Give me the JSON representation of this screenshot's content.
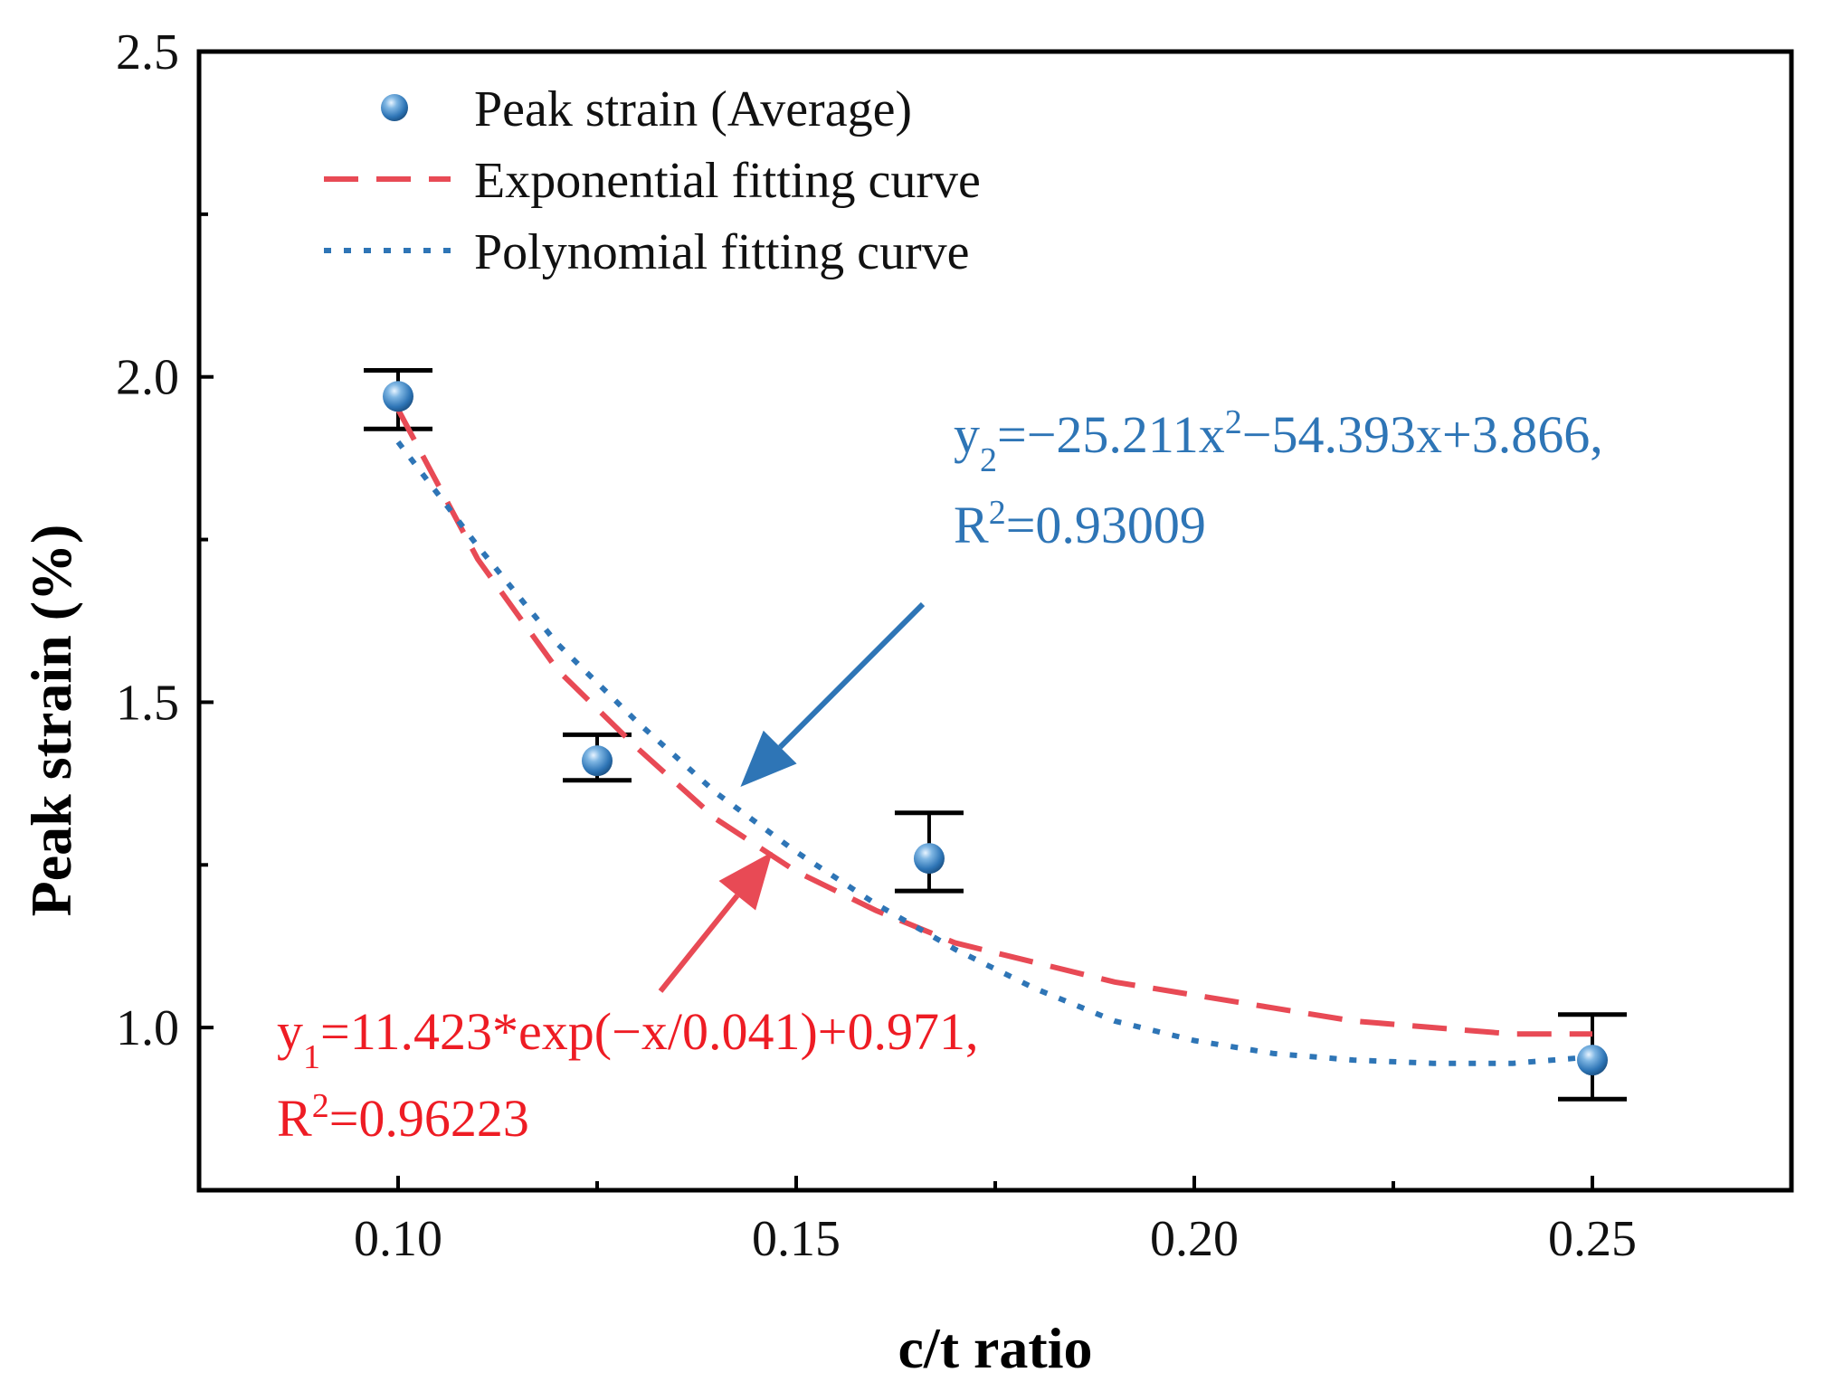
{
  "chart_data": {
    "type": "scatter",
    "xlabel": "c/t ratio",
    "ylabel": "Peak strain (%)",
    "xlim": [
      0.075,
      0.275
    ],
    "ylim": [
      0.75,
      2.5
    ],
    "xticks": [
      0.1,
      0.15,
      0.2,
      0.25
    ],
    "xtick_labels": [
      "0.10",
      "0.15",
      "0.20",
      "0.25"
    ],
    "yticks": [
      1.0,
      1.5,
      2.0,
      2.5
    ],
    "ytick_labels": [
      "1.0",
      "1.5",
      "2.0",
      "2.5"
    ],
    "minor_xticks": [
      0.125,
      0.175,
      0.225
    ],
    "minor_yticks": [
      1.25,
      1.75,
      2.25
    ],
    "grid": false,
    "legend_position": "top-left",
    "series": [
      {
        "name": "Peak strain (Average)",
        "kind": "points",
        "color": "#2e75b6",
        "x": [
          0.1,
          0.125,
          0.1667,
          0.25
        ],
        "y": [
          1.97,
          1.41,
          1.26,
          0.95
        ],
        "err_low": [
          1.92,
          1.38,
          1.21,
          0.89
        ],
        "err_high": [
          2.01,
          1.45,
          1.33,
          1.02
        ]
      },
      {
        "name": "Exponential fitting curve",
        "kind": "dashed",
        "color": "#e84a55",
        "x": [
          0.1,
          0.11,
          0.12,
          0.13,
          0.14,
          0.15,
          0.16,
          0.17,
          0.18,
          0.19,
          0.2,
          0.21,
          0.22,
          0.23,
          0.24,
          0.25
        ],
        "y": [
          1.95,
          1.72,
          1.55,
          1.43,
          1.32,
          1.24,
          1.18,
          1.13,
          1.1,
          1.07,
          1.05,
          1.03,
          1.01,
          1.0,
          0.99,
          0.99
        ]
      },
      {
        "name": "Polynomial fitting curve",
        "kind": "dotted",
        "color": "#2e75b6",
        "x": [
          0.1,
          0.11,
          0.12,
          0.13,
          0.14,
          0.15,
          0.16,
          0.17,
          0.18,
          0.19,
          0.2,
          0.21,
          0.22,
          0.23,
          0.24,
          0.25
        ],
        "y": [
          1.9,
          1.74,
          1.59,
          1.47,
          1.36,
          1.27,
          1.19,
          1.12,
          1.06,
          1.01,
          0.98,
          0.96,
          0.95,
          0.945,
          0.945,
          0.955
        ]
      }
    ],
    "legend": [
      {
        "label": "Peak strain (Average)",
        "marker": "sphere",
        "color": "#2e75b6"
      },
      {
        "label": "Exponential fitting curve",
        "marker": "dashed",
        "color": "#e84a55"
      },
      {
        "label": "Polynomial fitting curve",
        "marker": "dotted",
        "color": "#2e75b6"
      }
    ],
    "annotations": {
      "poly": {
        "color": "#2e75b6",
        "line1": {
          "a": "y",
          "sub": "2",
          "b": "=−25.211x",
          "sup": "2",
          "c": "−54.393x+3.866,"
        },
        "line2": {
          "a": "R",
          "sup": "2",
          "b": "=0.93009"
        },
        "arrow_to": [
          0.143,
          1.37
        ]
      },
      "exp": {
        "color": "#ee1c24",
        "line1": {
          "a": "y",
          "sub": "1",
          "b": "=11.423*exp(−x/0.041)+0.971,"
        },
        "line2": {
          "a": "R",
          "sup": "2",
          "b": "=0.96223"
        },
        "arrow_to": [
          0.147,
          1.27
        ]
      }
    }
  }
}
